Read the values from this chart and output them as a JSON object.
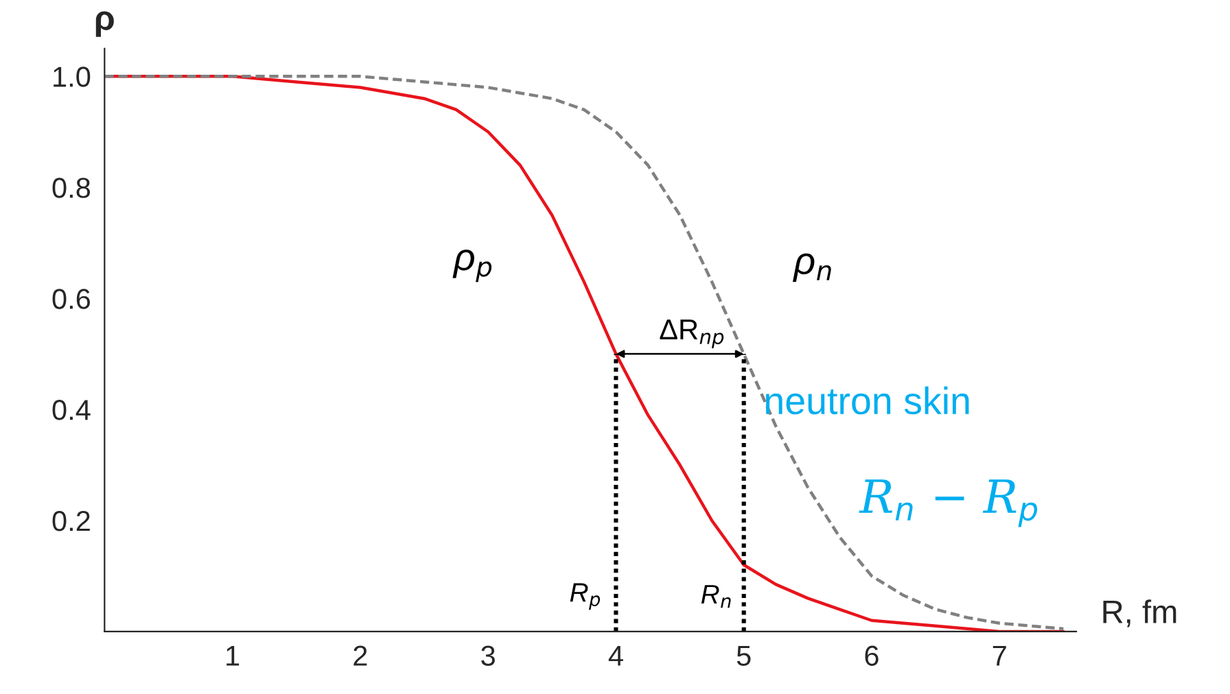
{
  "chart_data": {
    "type": "line",
    "xlabel": "R, fm",
    "ylabel": "ρ",
    "series": [
      {
        "color": "#e8141c",
        "line_style": "solid",
        "x": [
          0,
          1,
          1.5,
          2,
          2.5,
          2.75,
          3,
          3.25,
          3.5,
          3.75,
          4,
          4.25,
          4.5,
          4.75,
          5,
          5.25,
          5.5,
          5.75,
          6,
          6.25,
          6.5,
          7,
          7.5
        ],
        "values": [
          1.0,
          1.0,
          0.99,
          0.98,
          0.96,
          0.94,
          0.9,
          0.84,
          0.75,
          0.63,
          0.5,
          0.39,
          0.3,
          0.2,
          0.12,
          0.085,
          0.06,
          0.04,
          0.02,
          0.015,
          0.01,
          0.0,
          0.0
        ]
      },
      {
        "color": "#808080",
        "line_style": "dashed",
        "x": [
          0,
          1,
          2,
          2.5,
          3,
          3.5,
          3.75,
          4,
          4.25,
          4.5,
          4.75,
          5,
          5.25,
          5.5,
          5.75,
          6,
          6.25,
          6.5,
          6.75,
          7,
          7.5
        ],
        "values": [
          1.0,
          1.0,
          1.0,
          0.99,
          0.98,
          0.96,
          0.94,
          0.9,
          0.84,
          0.75,
          0.63,
          0.5,
          0.37,
          0.26,
          0.17,
          0.1,
          0.065,
          0.04,
          0.025,
          0.015,
          0.005
        ]
      },
      {
        "color": "#000000",
        "line_style": "dotted",
        "x": [
          4,
          4
        ],
        "values": [
          0,
          0.5
        ]
      },
      {
        "color": "#000000",
        "line_style": "dotted",
        "x": [
          5,
          5
        ],
        "values": [
          0,
          0.5
        ]
      }
    ],
    "xlim": [
      0,
      7.6
    ],
    "ylim": [
      0,
      1.05
    ],
    "xticks": [
      1,
      2,
      3,
      4,
      5,
      6,
      7
    ],
    "yticks": [
      0.2,
      0.4,
      0.6,
      0.8,
      {
        "value": 1.0,
        "label": "1.0"
      }
    ],
    "grid": false,
    "marker": "none",
    "annotations": [
      "ρ$_{p}$",
      "ρ$_{n}$",
      {
        "text": "ΔR$_{np}$",
        "x": 4,
        "y": 0.5
      },
      "R$_{p}$",
      "R$_{n}$",
      "neutron skin",
      "R$_{n}$ − R$_{p}$"
    ]
  }
}
